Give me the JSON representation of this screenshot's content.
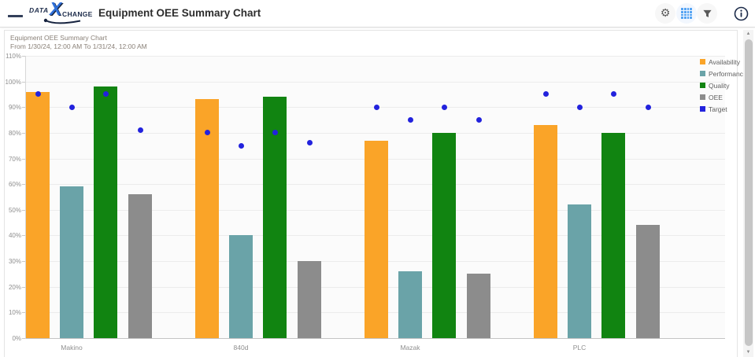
{
  "header": {
    "title": "Equipment OEE Summary Chart",
    "logo": {
      "word1": "DATA",
      "x": "X",
      "word2": "CHANGE"
    },
    "actions": {
      "settings": {
        "icon": "gear-icon",
        "color": "#5a5a5a"
      },
      "grid_view": {
        "icon": "grid-icon",
        "color": "#55a4f3",
        "active": true
      },
      "filter": {
        "icon": "filter-funnel-icon",
        "color": "#5a5a5a"
      },
      "info": {
        "icon": "info-icon",
        "color": "#1c2b4a"
      }
    }
  },
  "chart": {
    "title": "Equipment OEE Summary Chart",
    "subtitle": "From 1/30/24, 12:00 AM To 1/31/24, 12:00 AM"
  },
  "chart_data": {
    "type": "bar",
    "title": "Equipment OEE Summary Chart",
    "subtitle": "From 1/30/24, 12:00 AM To 1/31/24, 12:00 AM",
    "categories": [
      "Makino",
      "840d",
      "Mazak",
      "PLC"
    ],
    "series": [
      {
        "name": "Availability",
        "type": "bar",
        "color": "#FAA428",
        "values": [
          96,
          93,
          77,
          83
        ]
      },
      {
        "name": "Performance",
        "type": "bar",
        "color": "#6AA3A8",
        "values": [
          59,
          40,
          26,
          52
        ]
      },
      {
        "name": "Quality",
        "type": "bar",
        "color": "#118411",
        "values": [
          98,
          94,
          80,
          80
        ]
      },
      {
        "name": "OEE",
        "type": "bar",
        "color": "#8C8C8C",
        "values": [
          56,
          30,
          25,
          44
        ]
      },
      {
        "name": "Target",
        "type": "scatter",
        "color": "#2222DD",
        "aligned_to": [
          "Availability",
          "Performance",
          "Quality",
          "OEE"
        ],
        "values_per_category": [
          [
            95,
            90,
            95,
            81
          ],
          [
            80,
            75,
            80,
            76
          ],
          [
            90,
            85,
            90,
            85
          ],
          [
            95,
            90,
            95,
            90
          ]
        ]
      }
    ],
    "ylim": [
      0,
      110
    ],
    "y_tick_step": 10,
    "y_tick_format": "percent",
    "xlabel": "",
    "ylabel": "",
    "grid": true,
    "legend_position": "right",
    "legend": [
      "Availability",
      "Performance",
      "Quality",
      "OEE",
      "Target"
    ]
  }
}
